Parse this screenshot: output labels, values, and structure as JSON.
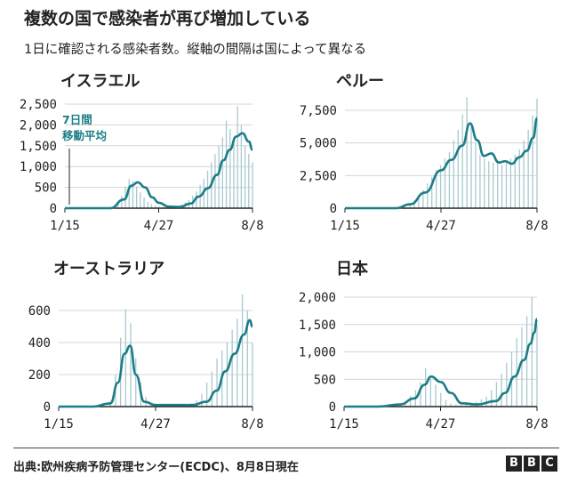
{
  "title": "複数の国で感染者が再び増加している",
  "subtitle": "1日に確認される感染者数。縦軸の間隔は国によって異なる",
  "source": "出典:欧州疾病予防管理センター(ECDC)、8月8日現在",
  "logo": [
    "B",
    "B",
    "C"
  ],
  "colors": {
    "line": "#1b7d86",
    "bars": "#a9c9cf",
    "grid": "#d4d4d4",
    "axis": "#222222"
  },
  "chart_data": [
    {
      "type": "line",
      "title": "イスラエル",
      "x_ticks": [
        "1/15",
        "4/27",
        "8/8"
      ],
      "y_ticks": [
        "0",
        "500",
        "1,000",
        "1,500",
        "2,000",
        "2,500"
      ],
      "ylim": [
        0,
        2500
      ],
      "annotation": [
        "7日間",
        "移動平均"
      ],
      "series": [
        {
          "kind": "line",
          "x": [
            "1/15",
            "2/15",
            "3/5",
            "3/20",
            "3/28",
            "4/4",
            "4/12",
            "4/20",
            "4/27",
            "5/8",
            "5/20",
            "6/1",
            "6/10",
            "6/20",
            "6/30",
            "7/7",
            "7/14",
            "7/21",
            "7/28",
            "8/4",
            "8/8"
          ],
          "values": [
            0,
            0,
            0,
            210,
            540,
            620,
            500,
            260,
            130,
            40,
            30,
            110,
            280,
            480,
            800,
            1150,
            1400,
            1720,
            1800,
            1600,
            1400
          ]
        },
        {
          "kind": "bar",
          "x_start": "3/5",
          "x_end": "8/8",
          "values": [
            10,
            40,
            120,
            300,
            520,
            700,
            650,
            520,
            380,
            260,
            150,
            100,
            70,
            40,
            30,
            25,
            30,
            40,
            60,
            90,
            140,
            200,
            300,
            400,
            560,
            700,
            900,
            1100,
            1300,
            1500,
            1700,
            2100,
            1900,
            1600,
            2450,
            2000,
            1500,
            1300,
            1100
          ]
        }
      ]
    },
    {
      "type": "line",
      "title": "ペルー",
      "x_ticks": [
        "1/15",
        "4/27",
        "8/8"
      ],
      "y_ticks": [
        "0",
        "2,500",
        "5,000",
        "7,500"
      ],
      "ylim": [
        0,
        8500
      ],
      "series": [
        {
          "kind": "line",
          "x": [
            "1/15",
            "2/15",
            "3/10",
            "3/25",
            "4/10",
            "4/27",
            "5/8",
            "5/20",
            "5/28",
            "6/5",
            "6/12",
            "6/20",
            "6/28",
            "7/5",
            "7/12",
            "7/20",
            "7/28",
            "8/4",
            "8/8"
          ],
          "values": [
            0,
            0,
            0,
            300,
            1200,
            2900,
            3700,
            4800,
            6500,
            5200,
            4000,
            4200,
            3500,
            3600,
            3400,
            3900,
            4400,
            5400,
            6900
          ]
        },
        {
          "kind": "bar",
          "x_start": "3/20",
          "x_end": "8/8",
          "values": [
            100,
            300,
            600,
            900,
            1400,
            1900,
            2400,
            2900,
            3300,
            3800,
            4300,
            5200,
            6000,
            7200,
            8500,
            6200,
            5000,
            4100,
            3800,
            3600,
            3500,
            3700,
            3300,
            3500,
            3800,
            4100,
            4500,
            5200,
            6000,
            7100,
            8400
          ]
        }
      ]
    },
    {
      "type": "line",
      "title": "オーストラリア",
      "x_ticks": [
        "1/15",
        "4/27",
        "8/8"
      ],
      "y_ticks": [
        "0",
        "200",
        "400",
        "600"
      ],
      "ylim": [
        0,
        700
      ],
      "series": [
        {
          "kind": "line",
          "x": [
            "1/15",
            "2/20",
            "3/10",
            "3/18",
            "3/25",
            "3/31",
            "4/6",
            "4/15",
            "4/27",
            "5/15",
            "6/5",
            "6/20",
            "7/1",
            "7/10",
            "7/20",
            "7/30",
            "8/5",
            "8/8"
          ],
          "values": [
            0,
            0,
            20,
            150,
            330,
            380,
            200,
            30,
            10,
            10,
            10,
            30,
            100,
            220,
            330,
            450,
            540,
            500
          ]
        },
        {
          "kind": "bar",
          "x_start": "3/10",
          "x_end": "8/8",
          "values": [
            40,
            200,
            430,
            610,
            520,
            300,
            150,
            60,
            20,
            15,
            10,
            10,
            10,
            10,
            10,
            15,
            20,
            40,
            80,
            150,
            220,
            300,
            350,
            400,
            480,
            550,
            720,
            600,
            400
          ]
        }
      ]
    },
    {
      "type": "line",
      "title": "日本",
      "x_ticks": [
        "1/15",
        "4/27",
        "8/8"
      ],
      "y_ticks": [
        "0",
        "500",
        "1,000",
        "1,500",
        "2,000"
      ],
      "ylim": [
        0,
        2100
      ],
      "series": [
        {
          "kind": "line",
          "x": [
            "1/15",
            "2/20",
            "3/15",
            "3/30",
            "4/10",
            "4/17",
            "4/27",
            "5/8",
            "5/20",
            "6/5",
            "6/25",
            "7/5",
            "7/15",
            "7/25",
            "8/1",
            "8/5",
            "8/8"
          ],
          "values": [
            0,
            0,
            40,
            150,
            400,
            550,
            450,
            250,
            60,
            40,
            100,
            250,
            550,
            850,
            1150,
            1350,
            1600
          ]
        },
        {
          "kind": "bar",
          "x_start": "3/15",
          "x_end": "8/8",
          "values": [
            60,
            100,
            200,
            300,
            450,
            700,
            500,
            400,
            250,
            120,
            60,
            40,
            30,
            40,
            60,
            90,
            130,
            180,
            300,
            450,
            600,
            800,
            1000,
            1250,
            1450,
            1650,
            2000,
            1500
          ]
        }
      ]
    }
  ]
}
